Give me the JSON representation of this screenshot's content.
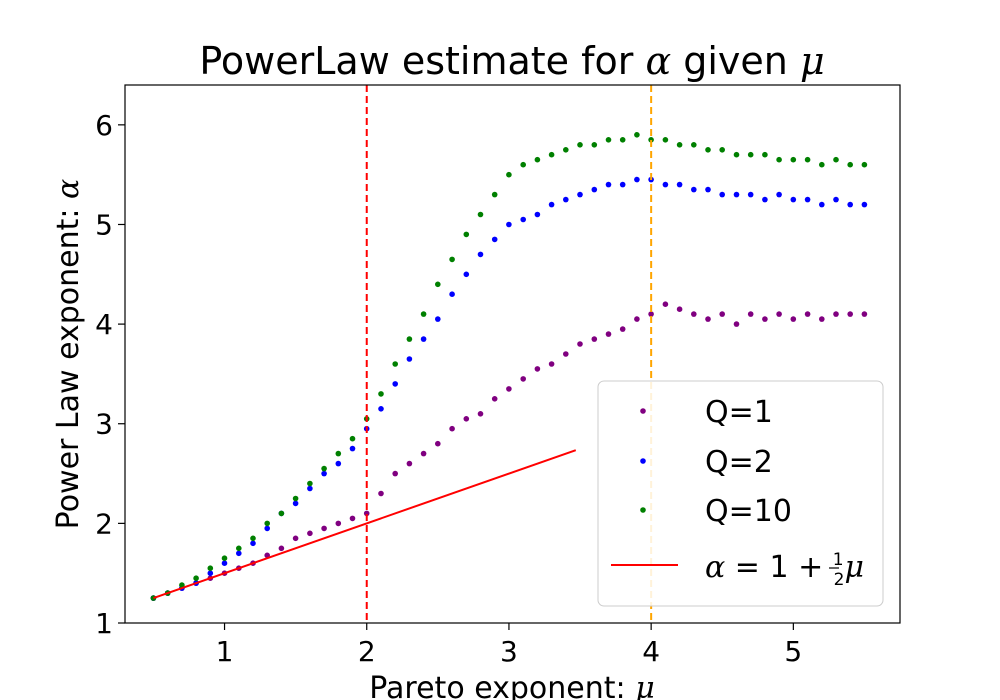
{
  "chart_data": {
    "type": "scatter",
    "title": "PowerLaw estimate for α given μ",
    "title_parts": {
      "prefix": "PowerLaw estimate for ",
      "alpha": "α",
      "mid": " given ",
      "mu": "μ"
    },
    "xlabel": "Pareto exponent: μ",
    "xlabel_parts": {
      "prefix": "Pareto exponent: ",
      "mu": "μ"
    },
    "ylabel": "Power Law exponent:  α",
    "ylabel_parts": {
      "prefix": "Power Law exponent:  ",
      "alpha": "α"
    },
    "xlim": [
      0.3,
      5.75
    ],
    "ylim": [
      1.0,
      6.4
    ],
    "xticks": [
      1,
      2,
      3,
      4,
      5
    ],
    "yticks": [
      1,
      2,
      3,
      4,
      5,
      6
    ],
    "xtick_labels": [
      "1",
      "2",
      "3",
      "4",
      "5"
    ],
    "ytick_labels": [
      "1",
      "2",
      "3",
      "4",
      "5",
      "6"
    ],
    "vlines": [
      {
        "x": 2,
        "color": "#ff0000",
        "style": "dashed"
      },
      {
        "x": 4,
        "color": "#ffa500",
        "style": "dashed"
      }
    ],
    "series": [
      {
        "name": "Q=1",
        "color": "#800080",
        "x": [
          0.5,
          0.6,
          0.7,
          0.8,
          0.9,
          1.0,
          1.1,
          1.2,
          1.3,
          1.4,
          1.5,
          1.6,
          1.7,
          1.8,
          1.9,
          2.0,
          2.1,
          2.2,
          2.3,
          2.4,
          2.5,
          2.6,
          2.7,
          2.8,
          2.9,
          3.0,
          3.1,
          3.2,
          3.3,
          3.4,
          3.5,
          3.6,
          3.7,
          3.8,
          3.9,
          4.0,
          4.1,
          4.2,
          4.3,
          4.4,
          4.5,
          4.6,
          4.7,
          4.8,
          4.9,
          5.0,
          5.1,
          5.2,
          5.3,
          5.4,
          5.5
        ],
        "y": [
          1.25,
          1.3,
          1.35,
          1.4,
          1.45,
          1.5,
          1.55,
          1.6,
          1.68,
          1.75,
          1.85,
          1.9,
          1.95,
          2.0,
          2.05,
          2.1,
          2.3,
          2.5,
          2.6,
          2.7,
          2.8,
          2.95,
          3.05,
          3.1,
          3.25,
          3.35,
          3.45,
          3.55,
          3.6,
          3.7,
          3.8,
          3.85,
          3.9,
          3.95,
          4.05,
          4.1,
          4.2,
          4.15,
          4.1,
          4.05,
          4.1,
          4.0,
          4.1,
          4.05,
          4.1,
          4.05,
          4.1,
          4.05,
          4.1,
          4.1,
          4.1
        ]
      },
      {
        "name": "Q=2",
        "color": "#0000ff",
        "x": [
          0.5,
          0.6,
          0.7,
          0.8,
          0.9,
          1.0,
          1.1,
          1.2,
          1.3,
          1.4,
          1.5,
          1.6,
          1.7,
          1.8,
          1.9,
          2.0,
          2.1,
          2.2,
          2.3,
          2.4,
          2.5,
          2.6,
          2.7,
          2.8,
          2.9,
          3.0,
          3.1,
          3.2,
          3.3,
          3.4,
          3.5,
          3.6,
          3.7,
          3.8,
          3.9,
          4.0,
          4.1,
          4.2,
          4.3,
          4.4,
          4.5,
          4.6,
          4.7,
          4.8,
          4.9,
          5.0,
          5.1,
          5.2,
          5.3,
          5.4,
          5.5
        ],
        "y": [
          1.25,
          1.3,
          1.35,
          1.4,
          1.5,
          1.6,
          1.7,
          1.8,
          1.95,
          2.1,
          2.2,
          2.35,
          2.5,
          2.6,
          2.75,
          2.95,
          3.15,
          3.4,
          3.65,
          3.85,
          4.05,
          4.3,
          4.5,
          4.7,
          4.85,
          5.0,
          5.05,
          5.1,
          5.2,
          5.25,
          5.3,
          5.35,
          5.4,
          5.4,
          5.45,
          5.45,
          5.4,
          5.4,
          5.35,
          5.35,
          5.3,
          5.3,
          5.3,
          5.25,
          5.3,
          5.25,
          5.25,
          5.2,
          5.25,
          5.2,
          5.2
        ]
      },
      {
        "name": "Q=10",
        "color": "#008000",
        "x": [
          0.5,
          0.6,
          0.7,
          0.8,
          0.9,
          1.0,
          1.1,
          1.2,
          1.3,
          1.4,
          1.5,
          1.6,
          1.7,
          1.8,
          1.9,
          2.0,
          2.1,
          2.2,
          2.3,
          2.4,
          2.5,
          2.6,
          2.7,
          2.8,
          2.9,
          3.0,
          3.1,
          3.2,
          3.3,
          3.4,
          3.5,
          3.6,
          3.7,
          3.8,
          3.9,
          4.0,
          4.1,
          4.2,
          4.3,
          4.4,
          4.5,
          4.6,
          4.7,
          4.8,
          4.9,
          5.0,
          5.1,
          5.2,
          5.3,
          5.4,
          5.5
        ],
        "y": [
          1.25,
          1.3,
          1.38,
          1.45,
          1.55,
          1.65,
          1.75,
          1.85,
          2.0,
          2.1,
          2.25,
          2.4,
          2.55,
          2.7,
          2.85,
          3.05,
          3.3,
          3.6,
          3.85,
          4.1,
          4.4,
          4.65,
          4.9,
          5.1,
          5.3,
          5.5,
          5.6,
          5.65,
          5.7,
          5.75,
          5.8,
          5.8,
          5.85,
          5.85,
          5.9,
          5.85,
          5.85,
          5.8,
          5.8,
          5.75,
          5.75,
          5.7,
          5.7,
          5.7,
          5.65,
          5.65,
          5.65,
          5.6,
          5.65,
          5.6,
          5.6
        ]
      }
    ],
    "reference_line": {
      "name": "α = 1 + ½μ",
      "label_parts": {
        "alpha": "α",
        "eq": " = 1 + ",
        "num": "1",
        "den": "2",
        "mu": "μ"
      },
      "color": "#ff0000",
      "x": [
        0.5,
        3.47
      ],
      "y": [
        1.25,
        2.735
      ]
    },
    "legend": {
      "placement": "lower-right",
      "entries": [
        "Q=1",
        "Q=2",
        "Q=10",
        "α = 1 + ½μ"
      ]
    }
  }
}
